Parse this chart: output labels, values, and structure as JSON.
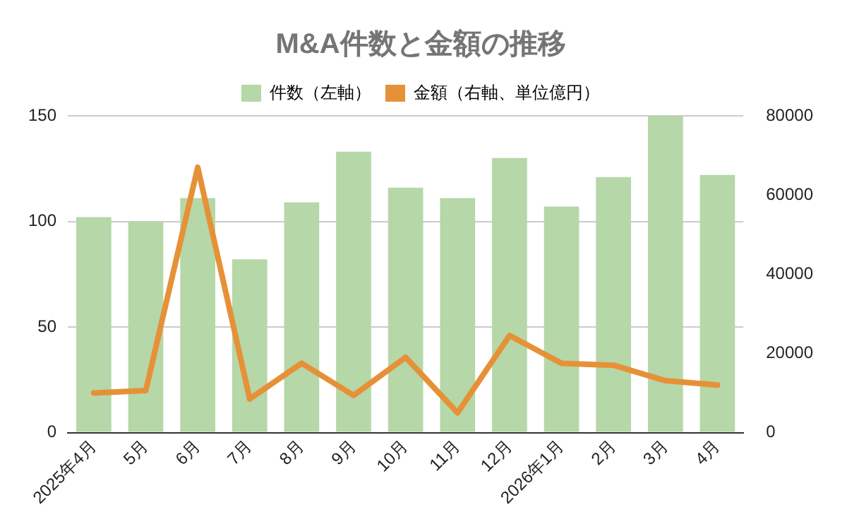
{
  "chart_data": {
    "type": "bar",
    "title": "M&A件数と金額の推移",
    "categories": [
      "2025年4月",
      "5月",
      "6月",
      "7月",
      "8月",
      "9月",
      "10月",
      "11月",
      "12月",
      "2026年1月",
      "2月",
      "3月",
      "4月"
    ],
    "series": [
      {
        "name": "件数（左軸）",
        "color": "#b6d7a8",
        "values": [
          102,
          100,
          111,
          82,
          109,
          133,
          116,
          111,
          130,
          107,
          121,
          150,
          122
        ]
      },
      {
        "name": "金額（右軸、単位億円）",
        "type": "line",
        "axis": "y2",
        "color": "#e69138",
        "values": [
          10000,
          10600,
          67000,
          8500,
          17500,
          9400,
          19000,
          5000,
          24500,
          17500,
          17000,
          13100,
          12000
        ]
      }
    ],
    "ylim": [
      0,
      150
    ],
    "yticks": [
      0,
      50,
      100,
      150
    ],
    "y2lim": [
      0,
      80000
    ],
    "y2ticks": [
      0,
      20000,
      40000,
      60000,
      80000
    ],
    "grid": "y",
    "legend": "top",
    "marker": "none"
  }
}
